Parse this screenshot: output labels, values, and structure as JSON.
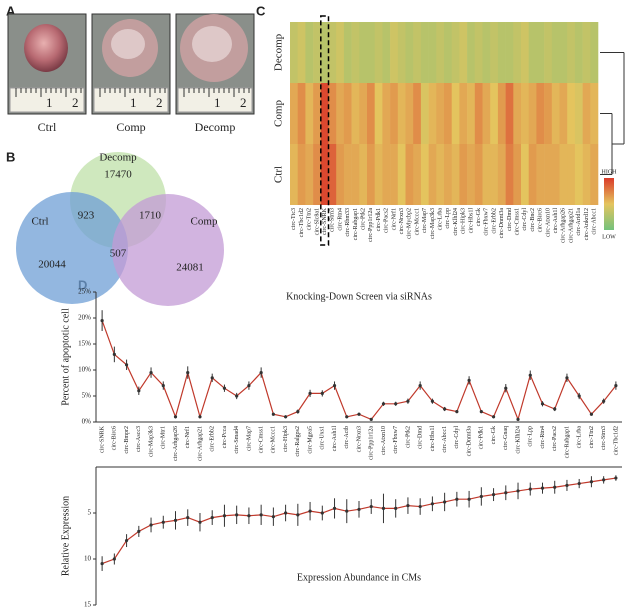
{
  "panel_labels": [
    "A",
    "B",
    "C",
    "D"
  ],
  "photos": {
    "captions": [
      "Ctrl",
      "Comp",
      "Decomp"
    ],
    "ruler_numbers": [
      "1",
      "2"
    ]
  },
  "chart_data": [
    {
      "type": "venn",
      "sets": [
        {
          "name": "Decomp",
          "color": "#bfe0a8",
          "count": 17470
        },
        {
          "name": "Ctrl",
          "color": "#6f9fd6",
          "count": 20044
        },
        {
          "name": "Comp",
          "color": "#c39bd6",
          "count": 24081
        }
      ],
      "intersections": [
        923,
        1710,
        507
      ]
    },
    {
      "type": "heatmap",
      "rows": [
        "Decomp",
        "Comp",
        "Ctrl"
      ],
      "columns": [
        "circ-Ttc3",
        "circ-Tbc1d2",
        "circ-Ttn2",
        "circ-Slc8a1",
        "circ-SNRK",
        "circ-Strn3",
        "circ-Rtn4",
        "circ-Rbm33",
        "circ-Rabgap1",
        "circ-Ptk2",
        "circ-Ppp1r12a",
        "circ-Pdk1",
        "circ-Pacs2",
        "circ-Nrf1",
        "circ-Nrxn3",
        "circ-Mycbp2",
        "circ-Mccc1",
        "circ-Map7",
        "circ-Map3k3",
        "circ-Lrba",
        "circ-Lpp",
        "circ-Klhl24",
        "circ-Hipk3",
        "circ-Hbs1l",
        "circ-Gk",
        "circ-Fbxw7",
        "circ-Erbb2",
        "circ-Dnmt3a",
        "circ-Dmd",
        "circ-Cmss1",
        "circ-Cdyl",
        "circ-Bnc2",
        "circ-Birc6",
        "circ-Atxn10",
        "circ-Ash1l",
        "circ-Arhgap26",
        "circ-Arhgap21",
        "circ-Arid1a",
        "circ-Ankrd12",
        "circ-Abcc1"
      ],
      "values": [
        [
          0.35,
          0.4,
          0.3,
          0.35,
          0.3,
          0.35,
          0.4,
          0.3,
          0.35,
          0.3,
          0.3,
          0.35,
          0.3,
          0.4,
          0.35,
          0.3,
          0.35,
          0.3,
          0.3,
          0.35,
          0.3,
          0.35,
          0.4,
          0.3,
          0.35,
          0.3,
          0.35,
          0.3,
          0.3,
          0.35,
          0.4,
          0.3,
          0.3,
          0.35,
          0.3,
          0.3,
          0.35,
          0.3,
          0.35,
          0.3
        ],
        [
          0.6,
          0.7,
          0.55,
          0.65,
          0.95,
          0.7,
          0.6,
          0.65,
          0.55,
          0.6,
          0.7,
          0.5,
          0.6,
          0.65,
          0.55,
          0.6,
          0.7,
          0.45,
          0.55,
          0.6,
          0.65,
          0.5,
          0.6,
          0.55,
          0.7,
          0.6,
          0.5,
          0.65,
          0.8,
          0.6,
          0.55,
          0.6,
          0.7,
          0.65,
          0.55,
          0.6,
          0.5,
          0.45,
          0.6,
          0.55
        ],
        [
          0.55,
          0.65,
          0.6,
          0.7,
          0.95,
          0.85,
          0.65,
          0.6,
          0.6,
          0.55,
          0.65,
          0.55,
          0.6,
          0.6,
          0.5,
          0.65,
          0.6,
          0.5,
          0.6,
          0.55,
          0.6,
          0.55,
          0.65,
          0.6,
          0.65,
          0.55,
          0.55,
          0.6,
          0.75,
          0.65,
          0.5,
          0.65,
          0.6,
          0.6,
          0.6,
          0.55,
          0.55,
          0.5,
          0.55,
          0.6
        ]
      ],
      "color_scale": [
        "#74c27c",
        "#e4c45e",
        "#da3a2a"
      ],
      "legend_labels": [
        "HIGH",
        "LOW"
      ],
      "highlight_column": 4
    },
    {
      "type": "line",
      "title": "Knocking-Down Screen via siRNAs",
      "ylabel": "Percent of apoptotic cell",
      "categories": [
        "circ-SNRK",
        "circ-Birc6",
        "circ-Bmpr2",
        "circ-Ascc3",
        "circ-Map3k3",
        "circ-Mtr1",
        "circ-Arhgap26",
        "circ-Nrf1",
        "circ-Arhgap21",
        "circ-Erbb2",
        "circ-Pcca",
        "circ-Smad4",
        "circ-Map7",
        "circ-Cmss1",
        "circ-Mccc1",
        "circ-Hipk3",
        "circ-Ralgps2",
        "circ-Mgea5",
        "circ-Uxs1",
        "circ-Ash1l",
        "circ-Actb",
        "circ-Nrxn3",
        "circ-Ppp1r12a",
        "circ-Atxn10",
        "circ-Fbxw7",
        "circ-Ptk2",
        "circ-Dmd",
        "circ-Hbs1l",
        "circ-Abcc1",
        "circ-Cdyl",
        "circ-Dnmt3a",
        "circ-Pdk1",
        "circ-Gk",
        "circ-Gnaq",
        "circ-Klhl24",
        "circ-Lpp",
        "circ-Rtn4",
        "circ-Pacs2",
        "circ-Rabgap1",
        "circ-Lrba",
        "circ-Ttn2",
        "circ-Strn3",
        "circ-Tbc1d2"
      ],
      "values": [
        19.5,
        13,
        11,
        6,
        9.5,
        7,
        1,
        9.5,
        1,
        8.5,
        6.5,
        5,
        7,
        9.5,
        1.5,
        1,
        2,
        5.5,
        5.5,
        7,
        1,
        1.5,
        0.5,
        3.5,
        3.5,
        4,
        7,
        4,
        2.5,
        2,
        8,
        2,
        1,
        6.5,
        0.5,
        9,
        3.5,
        2.5,
        8.5,
        5,
        1.5,
        4,
        7
      ],
      "errors": [
        2,
        1.5,
        1,
        0.8,
        1,
        0.8,
        0.3,
        1.2,
        0.3,
        0.8,
        0.7,
        0.6,
        0.8,
        1,
        0.3,
        0.3,
        0.4,
        0.7,
        0.6,
        0.8,
        0.3,
        0.3,
        0.2,
        0.4,
        0.4,
        0.5,
        0.8,
        0.5,
        0.4,
        0.3,
        0.8,
        0.3,
        0.3,
        0.8,
        0.2,
        0.9,
        0.5,
        0.4,
        0.8,
        0.6,
        0.3,
        0.5,
        0.8
      ],
      "ylim": [
        0,
        25
      ],
      "yticks": [
        {
          "value": 0,
          "label": "0%"
        },
        {
          "value": 5,
          "label": "5%"
        },
        {
          "value": 10,
          "label": "10%"
        },
        {
          "value": 15,
          "label": "15%"
        },
        {
          "value": 20,
          "label": "20%"
        },
        {
          "value": 25,
          "label": "25%"
        }
      ],
      "color": "#c0392b",
      "highlight_color": "#e05a3a",
      "highlight_index": 0
    },
    {
      "type": "line",
      "title": "Expression Abundance in CMs",
      "ylabel": "Relative Expression",
      "values": [
        10.5,
        10,
        8,
        7,
        6.3,
        6,
        5.8,
        5.5,
        6,
        5.5,
        5.3,
        5.2,
        5.3,
        5.2,
        5.4,
        5,
        5.2,
        4.8,
        5,
        4.5,
        4.8,
        4.6,
        4.3,
        4.5,
        4.5,
        4.2,
        4.3,
        4,
        3.8,
        3.5,
        3.5,
        3.2,
        3,
        2.8,
        2.6,
        2.4,
        2.3,
        2.2,
        2,
        1.8,
        1.6,
        1.4,
        1.2
      ],
      "errors": [
        0.8,
        0.6,
        0.7,
        0.6,
        0.8,
        0.7,
        1,
        0.9,
        1,
        0.8,
        1.2,
        1,
        0.9,
        1.1,
        1,
        0.9,
        1.2,
        1,
        0.8,
        1.1,
        1.3,
        0.9,
        0.8,
        1.6,
        1,
        0.9,
        0.9,
        0.8,
        1,
        0.8,
        0.9,
        1,
        0.7,
        0.8,
        0.9,
        0.7,
        0.6,
        0.7,
        0.6,
        0.5,
        0.6,
        0.4,
        0.3
      ],
      "ylim": [
        0,
        15
      ],
      "inverted": true,
      "yticks": [
        5,
        10,
        15
      ],
      "color": "#c0392b"
    }
  ]
}
